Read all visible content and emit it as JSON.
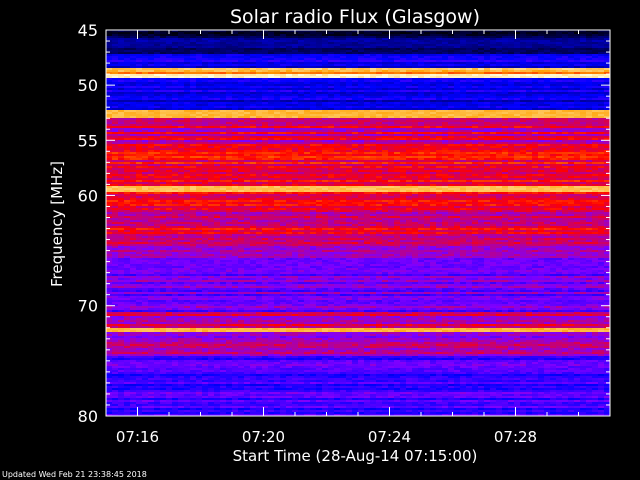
{
  "chart_data": {
    "type": "heatmap",
    "title": "Solar radio Flux (Glasgow)",
    "xlabel": "Start Time (28-Aug-14 07:15:00)",
    "ylabel": "Frequency [MHz]",
    "x_range_minutes": [
      0,
      16
    ],
    "x_ticks": [
      {
        "minute": 1,
        "label": "07:16"
      },
      {
        "minute": 5,
        "label": "07:20"
      },
      {
        "minute": 9,
        "label": "07:24"
      },
      {
        "minute": 13,
        "label": "07:28"
      }
    ],
    "ylim": [
      45,
      80
    ],
    "y_inverted": true,
    "y_ticks": [
      {
        "value": 45,
        "label": "45"
      },
      {
        "value": 50,
        "label": "50"
      },
      {
        "value": 55,
        "label": "55"
      },
      {
        "value": 60,
        "label": "60"
      },
      {
        "value": 70,
        "label": "70"
      },
      {
        "value": 80,
        "label": "80"
      }
    ],
    "y_minor_ticks": [
      46,
      47,
      48,
      49,
      51,
      52,
      53,
      54,
      56,
      57,
      58,
      59,
      61,
      62,
      63,
      64,
      65,
      66,
      67,
      68,
      69,
      71,
      72,
      73,
      74,
      75,
      76,
      77,
      78,
      79
    ],
    "colormap": [
      "#000000",
      "#000080",
      "#0000ff",
      "#8000ff",
      "#ff0000",
      "#ffa000",
      "#ffffe0"
    ],
    "bands": [
      {
        "f0": 45.0,
        "f1": 45.8,
        "intensity": 0.05
      },
      {
        "f0": 45.8,
        "f1": 47.2,
        "intensity": 0.18
      },
      {
        "f0": 47.2,
        "f1": 48.5,
        "intensity": 0.32
      },
      {
        "f0": 48.5,
        "f1": 48.9,
        "intensity": 0.85
      },
      {
        "f0": 48.9,
        "f1": 49.3,
        "intensity": 1.0
      },
      {
        "f0": 49.3,
        "f1": 49.7,
        "intensity": 0.3
      },
      {
        "f0": 49.7,
        "f1": 51.0,
        "intensity": 0.33
      },
      {
        "f0": 51.0,
        "f1": 52.3,
        "intensity": 0.3
      },
      {
        "f0": 52.3,
        "f1": 52.9,
        "intensity": 0.9
      },
      {
        "f0": 52.9,
        "f1": 55.5,
        "intensity": 0.6
      },
      {
        "f0": 55.5,
        "f1": 59.2,
        "intensity": 0.65
      },
      {
        "f0": 59.2,
        "f1": 59.6,
        "intensity": 0.92
      },
      {
        "f0": 59.6,
        "f1": 64.5,
        "intensity": 0.62
      },
      {
        "f0": 64.5,
        "f1": 66.5,
        "intensity": 0.5
      },
      {
        "f0": 66.5,
        "f1": 70.5,
        "intensity": 0.47
      },
      {
        "f0": 70.5,
        "f1": 72.0,
        "intensity": 0.58
      },
      {
        "f0": 72.0,
        "f1": 72.4,
        "intensity": 0.9
      },
      {
        "f0": 72.4,
        "f1": 74.5,
        "intensity": 0.55
      },
      {
        "f0": 74.5,
        "f1": 80.0,
        "intensity": 0.42
      }
    ]
  },
  "footer": {
    "updated": "Updated Wed Feb 21 23:38:45 2018"
  }
}
